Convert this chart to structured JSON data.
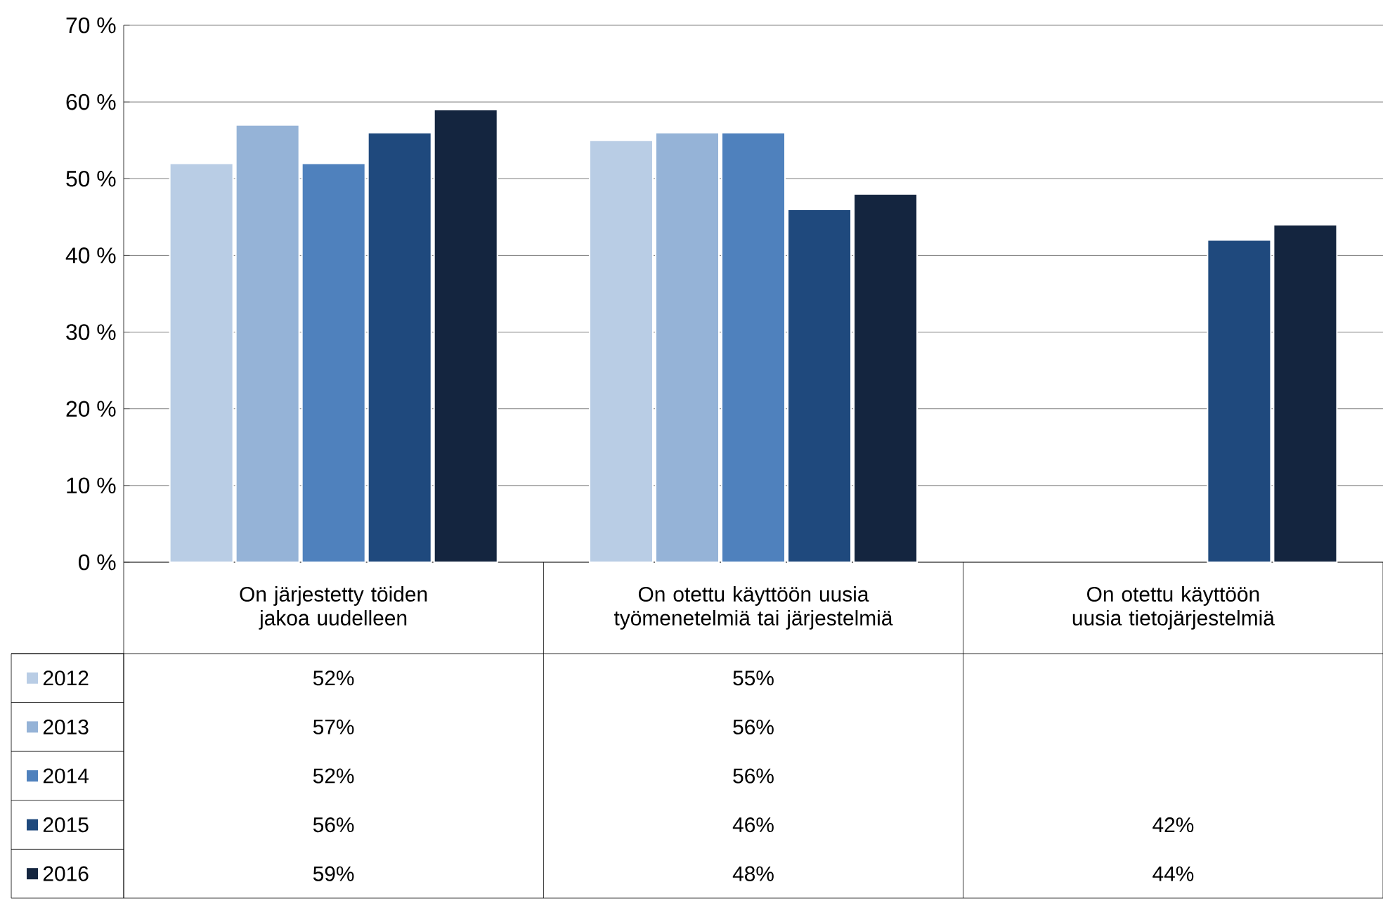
{
  "chart_data": {
    "type": "bar",
    "categories": [
      "On järjestetty töiden jakoa uudelleen",
      "On otettu käyttöön uusia työmenetelmiä tai järjestelmiä",
      "On otettu käyttöön uusia tietojärjestelmiä"
    ],
    "series": [
      {
        "name": "2012",
        "color": "#b9cde5",
        "values": [
          52,
          55,
          null
        ],
        "value_labels": [
          "52%",
          "55%",
          null
        ]
      },
      {
        "name": "2013",
        "color": "#95b3d7",
        "values": [
          57,
          56,
          null
        ],
        "value_labels": [
          "57%",
          "56%",
          null
        ]
      },
      {
        "name": "2014",
        "color": "#4f81bd",
        "values": [
          52,
          56,
          null
        ],
        "value_labels": [
          "52%",
          "56%",
          null
        ]
      },
      {
        "name": "2015",
        "color": "#1f497d",
        "values": [
          56,
          46,
          42
        ],
        "value_labels": [
          "56%",
          "46%",
          "42%"
        ]
      },
      {
        "name": "2016",
        "color": "#14253f",
        "values": [
          59,
          48,
          44
        ],
        "value_labels": [
          "59%",
          "48%",
          "44%"
        ]
      }
    ],
    "ylim": [
      0,
      70
    ],
    "yticks": [
      {
        "value": 0,
        "label": "0 %"
      },
      {
        "value": 10,
        "label": "10 %"
      },
      {
        "value": 20,
        "label": "20 %"
      },
      {
        "value": 30,
        "label": "30 %"
      },
      {
        "value": 40,
        "label": "40 %"
      },
      {
        "value": 50,
        "label": "50 %"
      },
      {
        "value": 60,
        "label": "60 %"
      },
      {
        "value": 70,
        "label": "70 %"
      }
    ],
    "grid": "y",
    "legend": "bottom left"
  }
}
